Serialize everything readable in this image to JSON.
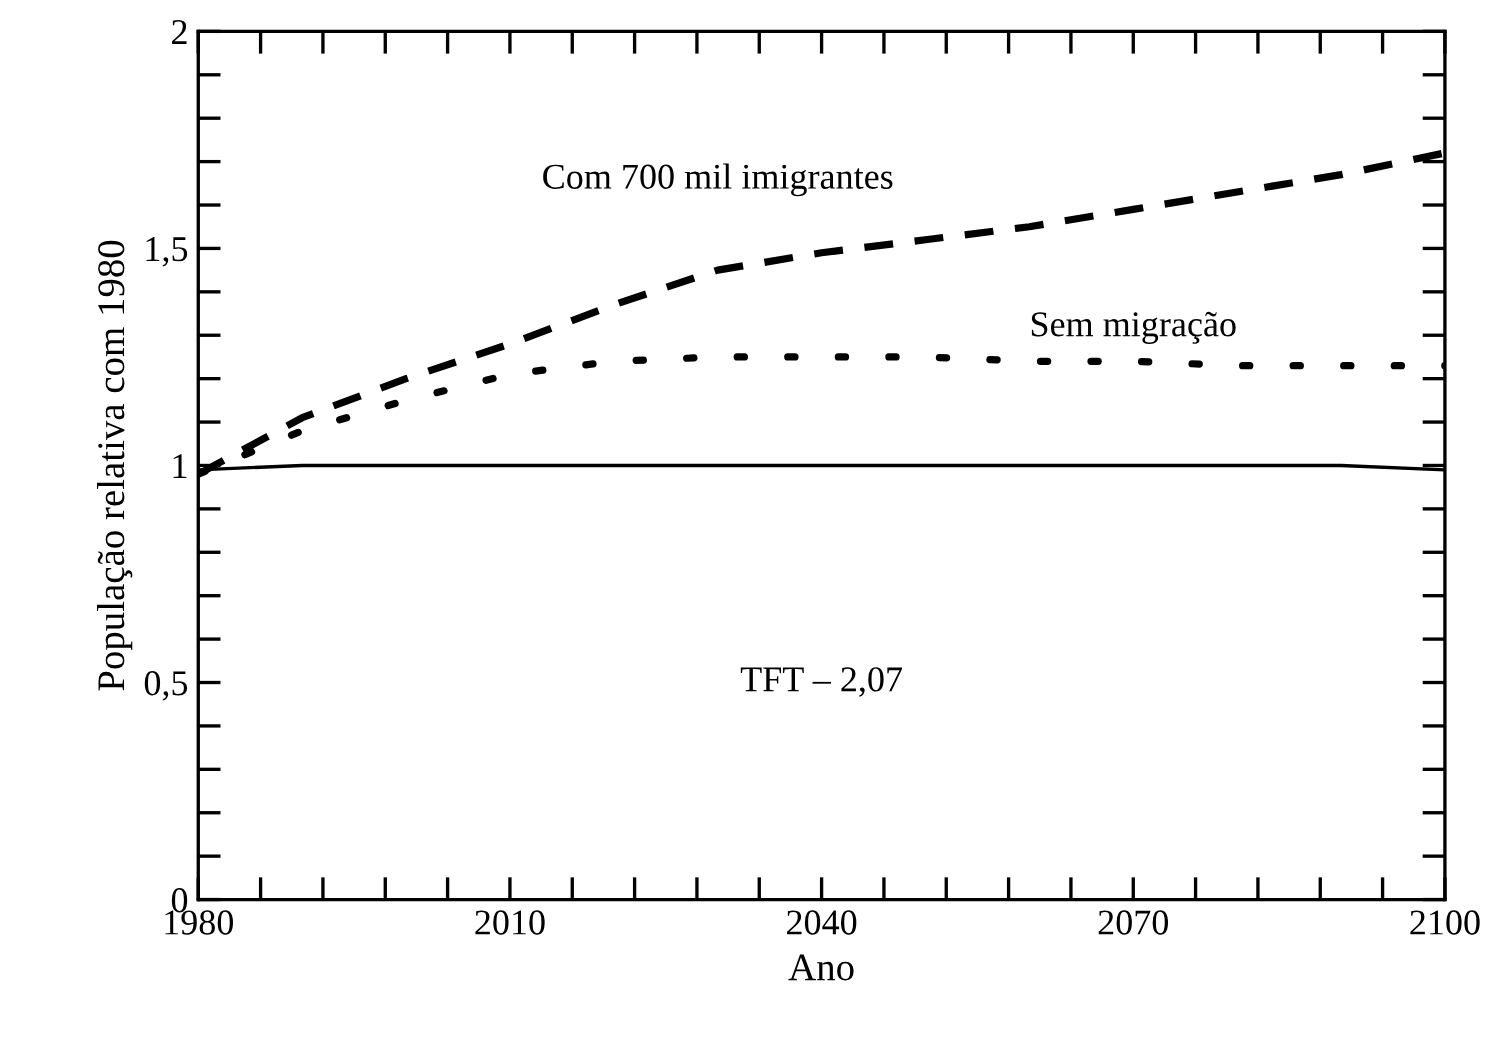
{
  "chart_data": {
    "type": "line",
    "xlabel": "Ano",
    "ylabel": "População relativa com 1980",
    "x": [
      1980,
      1990,
      2000,
      2010,
      2020,
      2030,
      2040,
      2050,
      2060,
      2070,
      2080,
      2090,
      2100
    ],
    "series": [
      {
        "name": "Com 700 mil imigrantes",
        "color": "#000000",
        "line_style": "dashed",
        "values": [
          0.98,
          1.11,
          1.2,
          1.28,
          1.37,
          1.45,
          1.49,
          1.52,
          1.55,
          1.59,
          1.63,
          1.67,
          1.72
        ]
      },
      {
        "name": "Sem migração",
        "color": "#000000",
        "line_style": "dotted",
        "values": [
          0.98,
          1.08,
          1.15,
          1.21,
          1.24,
          1.25,
          1.25,
          1.25,
          1.24,
          1.24,
          1.23,
          1.23,
          1.23
        ]
      },
      {
        "color": "#000000",
        "line_style": "solid",
        "values": [
          0.99,
          1.0,
          1.0,
          1.0,
          1.0,
          1.0,
          1.0,
          1.0,
          1.0,
          1.0,
          1.0,
          1.0,
          0.99
        ]
      }
    ],
    "annotations": [
      "TFT – 2,07"
    ],
    "xlim": [
      1980,
      2100
    ],
    "xticks": [
      1980,
      {
        "value": 1986,
        "label": null
      },
      {
        "value": 1992,
        "label": null
      },
      {
        "value": 1998,
        "label": null
      },
      {
        "value": 2004,
        "label": null
      },
      2010,
      {
        "value": 2016,
        "label": null
      },
      {
        "value": 2022,
        "label": null
      },
      {
        "value": 2028,
        "label": null
      },
      {
        "value": 2034,
        "label": null
      },
      2040,
      {
        "value": 2046,
        "label": null
      },
      {
        "value": 2052,
        "label": null
      },
      {
        "value": 2058,
        "label": null
      },
      {
        "value": 2064,
        "label": null
      },
      2070,
      {
        "value": 2076,
        "label": null
      },
      {
        "value": 2082,
        "label": null
      },
      {
        "value": 2088,
        "label": null
      },
      {
        "value": 2094,
        "label": null
      },
      2100
    ],
    "ylim": [
      0,
      2
    ],
    "yticks": [
      0,
      {
        "value": 0.1,
        "label": null
      },
      {
        "value": 0.2,
        "label": null
      },
      {
        "value": 0.3,
        "label": null
      },
      {
        "value": 0.4,
        "label": null
      },
      {
        "value": 0.5,
        "label": "0,5"
      },
      {
        "value": 0.6,
        "label": null
      },
      {
        "value": 0.7,
        "label": null
      },
      {
        "value": 0.8,
        "label": null
      },
      {
        "value": 0.9,
        "label": null
      },
      1,
      {
        "value": 1.1,
        "label": null
      },
      {
        "value": 1.2,
        "label": null
      },
      {
        "value": 1.3,
        "label": null
      },
      {
        "value": 1.4,
        "label": null
      },
      {
        "value": 1.5,
        "label": "1,5"
      },
      {
        "value": 1.6,
        "label": null
      },
      {
        "value": 1.7,
        "label": null
      },
      {
        "value": 1.8,
        "label": null
      },
      {
        "value": 1.9,
        "label": null
      },
      2
    ],
    "grid": false,
    "legend": false
  }
}
